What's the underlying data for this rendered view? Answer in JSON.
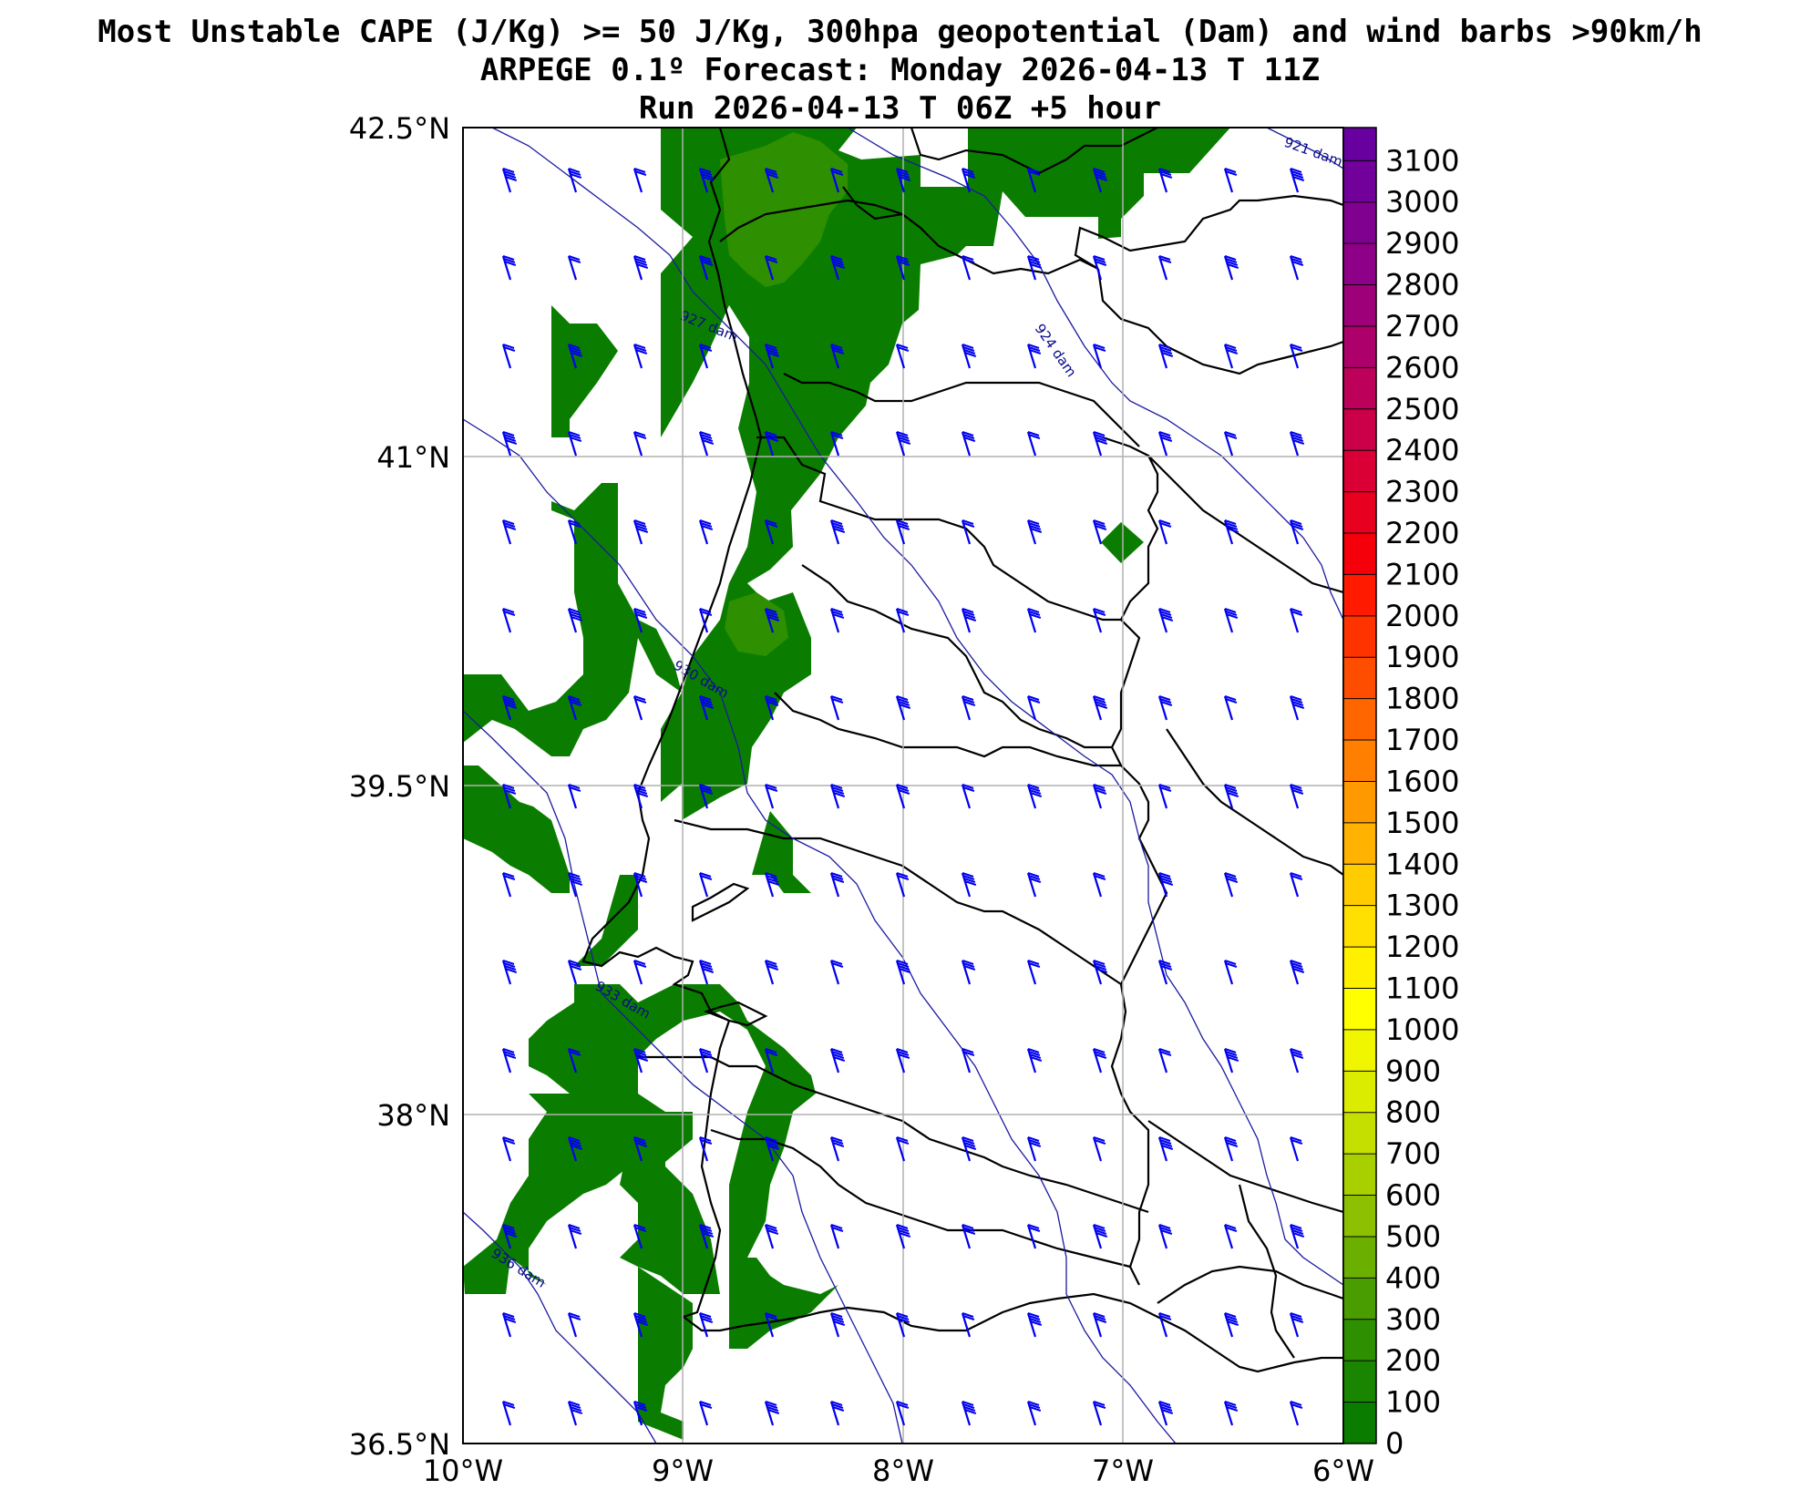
{
  "title": {
    "line1": "Most Unstable CAPE (J/Kg) >= 50 J/Kg, 300hpa geopotential (Dam) and wind barbs >90km/h",
    "line2": "ARPEGE 0.1º Forecast: Monday 2026-04-13 T 11Z",
    "line3": "Run 2026-04-13 T 06Z +5 hour"
  },
  "axes": {
    "lat_labels": [
      "42.5°N",
      "41°N",
      "39.5°N",
      "38°N",
      "36.5°N"
    ],
    "lon_labels": [
      "10°W",
      "9°W",
      "8°W",
      "7°W",
      "6°W"
    ],
    "lat_range": [
      36.5,
      42.5
    ],
    "lon_range": [
      -10,
      -6
    ],
    "grid": true
  },
  "colorbar": {
    "labels": [
      "0",
      "100",
      "200",
      "300",
      "400",
      "500",
      "600",
      "700",
      "800",
      "900",
      "1000",
      "1100",
      "1200",
      "1300",
      "1400",
      "1500",
      "1600",
      "1700",
      "1800",
      "1900",
      "2000",
      "2100",
      "2200",
      "2300",
      "2400",
      "2500",
      "2600",
      "2700",
      "2800",
      "2900",
      "3000",
      "3100"
    ],
    "colors": [
      "#0a7d00",
      "#1a8500",
      "#2e8f00",
      "#4a9d00",
      "#6bb000",
      "#8cc000",
      "#a8d000",
      "#c4df00",
      "#dcec00",
      "#f0f500",
      "#ffff00",
      "#fff000",
      "#ffe000",
      "#ffcc00",
      "#ffb300",
      "#ff9900",
      "#ff8000",
      "#ff6600",
      "#ff4d00",
      "#ff3300",
      "#ff1a00",
      "#f5000a",
      "#e80020",
      "#da0035",
      "#cc0048",
      "#bd005a",
      "#ae006b",
      "#9e007a",
      "#8f0088",
      "#800090",
      "#72009a",
      "#6800a0"
    ]
  },
  "geopotential_contours": [
    "921 dam",
    "924 dam",
    "927 dam",
    "930 dam",
    "933 dam",
    "936 dam"
  ],
  "colors": {
    "cape_low": "#0a7d00",
    "cape_mid": "#2e8f00",
    "contour": "#1a1aa0",
    "barb": "#0000ee",
    "border": "#000000",
    "grid": "#b0b0b0"
  }
}
